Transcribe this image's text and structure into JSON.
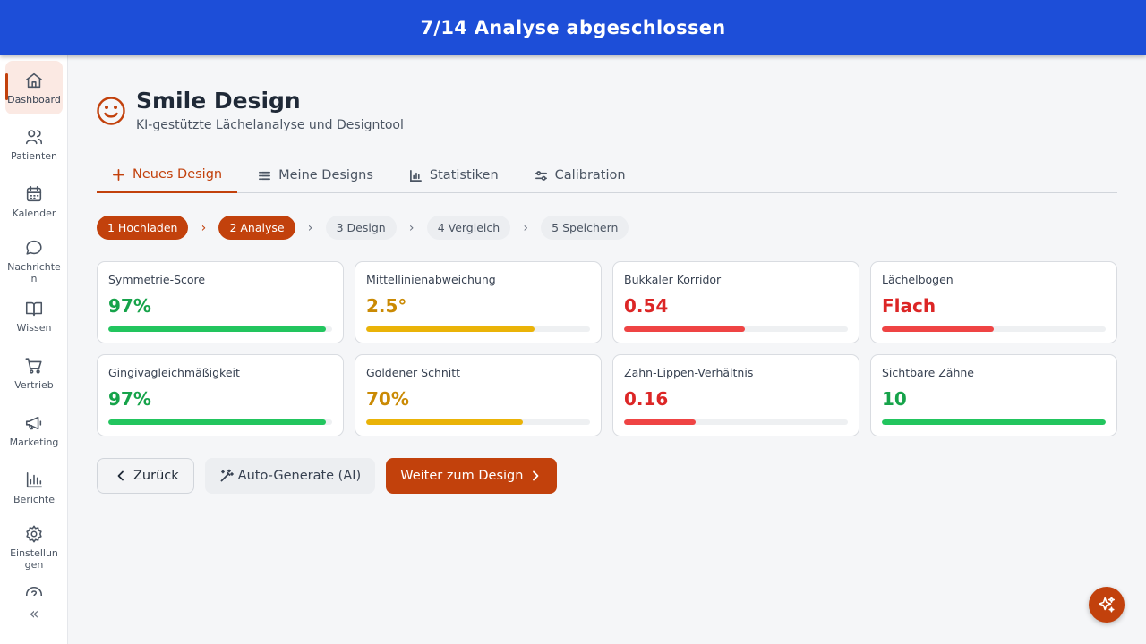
{
  "banner": {
    "text": "7/14 Analyse abgeschlossen",
    "color": "#1d4ed8"
  },
  "sidebar": {
    "items": [
      {
        "label": "Dashboard",
        "icon": "home-icon",
        "active": true
      },
      {
        "label": "Patienten",
        "icon": "users-icon"
      },
      {
        "label": "Kalender",
        "icon": "calendar-icon"
      },
      {
        "label": "Nachrichten",
        "icon": "message-icon"
      },
      {
        "label": "Wissen",
        "icon": "book-icon"
      },
      {
        "label": "Vertrieb",
        "icon": "cart-icon"
      },
      {
        "label": "Marketing",
        "icon": "megaphone-icon"
      },
      {
        "label": "Berichte",
        "icon": "bar-chart-icon"
      },
      {
        "label": "Einstellungen",
        "icon": "gear-icon"
      }
    ],
    "collapse_label": "«"
  },
  "header": {
    "title": "Smile Design",
    "subtitle": "KI-gestützte Lächelanalyse und Designtool",
    "icon": "smile-icon",
    "accent": "#c2410c"
  },
  "tabs": [
    {
      "label": "Neues Design",
      "icon": "plus-icon",
      "active": true
    },
    {
      "label": "Meine Designs",
      "icon": "list-icon"
    },
    {
      "label": "Statistiken",
      "icon": "chart-icon"
    },
    {
      "label": "Calibration",
      "icon": "sliders-icon"
    }
  ],
  "steps": [
    {
      "label": "1 Hochladen",
      "state": "done"
    },
    {
      "label": "2 Analyse",
      "state": "current"
    },
    {
      "label": "3 Design",
      "state": "todo"
    },
    {
      "label": "4 Vergleich",
      "state": "todo"
    },
    {
      "label": "5 Speichern",
      "state": "todo"
    }
  ],
  "metrics": [
    {
      "label": "Symmetrie-Score",
      "value": "97%",
      "progress": 0.97,
      "color": "#16a34a",
      "bar_color": "#22c55e"
    },
    {
      "label": "Mittellinienabweichung",
      "value": "2.5°",
      "progress": 0.75,
      "color": "#ca8a04",
      "bar_color": "#eab308"
    },
    {
      "label": "Bukkaler Korridor",
      "value": "0.54",
      "progress": 0.54,
      "color": "#dc2626",
      "bar_color": "#ef4444"
    },
    {
      "label": "Lächelbogen",
      "value": "Flach",
      "progress": 0.5,
      "color": "#dc2626",
      "bar_color": "#ef4444"
    },
    {
      "label": "Gingivagleichmäßigkeit",
      "value": "97%",
      "progress": 0.97,
      "color": "#16a34a",
      "bar_color": "#22c55e"
    },
    {
      "label": "Goldener Schnitt",
      "value": "70%",
      "progress": 0.7,
      "color": "#ca8a04",
      "bar_color": "#eab308"
    },
    {
      "label": "Zahn-Lippen-Verhältnis",
      "value": "0.16",
      "progress": 0.32,
      "color": "#dc2626",
      "bar_color": "#ef4444"
    },
    {
      "label": "Sichtbare Zähne",
      "value": "10",
      "progress": 1.0,
      "color": "#16a34a",
      "bar_color": "#22c55e"
    }
  ],
  "actions": {
    "back_label": "Zurück",
    "ai_label": "Auto-Generate (AI)",
    "next_label": "Weiter zum Design"
  },
  "fab": {
    "icon": "sparkles-icon"
  }
}
